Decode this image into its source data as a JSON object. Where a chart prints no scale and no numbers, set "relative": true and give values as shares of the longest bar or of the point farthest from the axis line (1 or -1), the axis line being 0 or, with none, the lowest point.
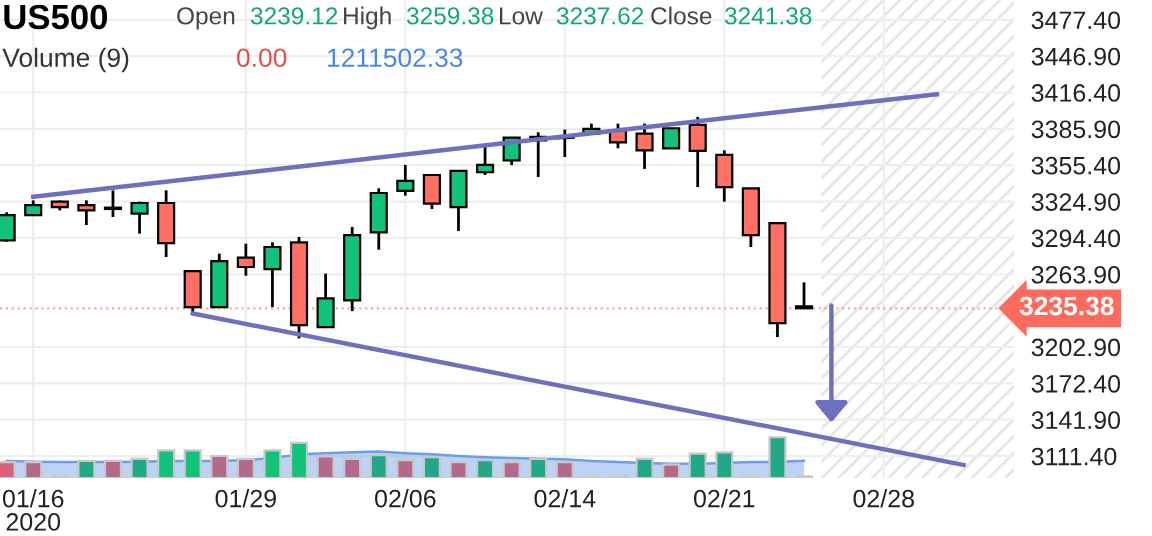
{
  "chart_data": [
    {
      "type": "candlestick",
      "title": "US500",
      "annotations": [
        "Open",
        "3239.12",
        "High",
        "3259.38",
        "Low",
        "3237.62",
        "Close",
        "3241.38"
      ],
      "ref_lines": [
        {
          "axis": "y",
          "value": 3235.38,
          "label": "3235.38",
          "color": "#ff6a5e",
          "line_style": "dotted"
        }
      ],
      "categories": [
        null,
        "01/16\n2020",
        null,
        null,
        null,
        null,
        null,
        null,
        null,
        "01/29",
        null,
        null,
        null,
        null,
        null,
        "02/06",
        null,
        null,
        null,
        null,
        null,
        "02/14",
        null,
        null,
        null,
        null,
        null,
        "02/21",
        null,
        null,
        null,
        null,
        null,
        "02/28",
        null,
        null,
        null,
        null
      ],
      "ohlc": [
        [
          3292.4,
          3315.9,
          3291.2,
          3313.6
        ],
        [
          3313.6,
          3325.9,
          3313.6,
          3322.0
        ],
        [
          3324.8,
          3325.9,
          3317.5,
          3320.3
        ],
        [
          3322.0,
          3325.9,
          3305.2,
          3317.5
        ],
        [
          3319.8,
          3334.3,
          3311.9,
          3318.7
        ],
        [
          3314.7,
          3324.8,
          3298.0,
          3323.7
        ],
        [
          3323.7,
          3334.3,
          3278.4,
          3290.1
        ],
        [
          3266.6,
          3266.6,
          3229.7,
          3236.4
        ],
        [
          3236.4,
          3281.2,
          3236.4,
          3275.0
        ],
        [
          3277.8,
          3289.6,
          3262.7,
          3270.0
        ],
        [
          3268.3,
          3290.7,
          3236.4,
          3286.8
        ],
        [
          3290.7,
          3295.2,
          3210.1,
          3221.3
        ],
        [
          3219.6,
          3264.4,
          3219.6,
          3243.7
        ],
        [
          3242.0,
          3303.6,
          3233.0,
          3296.8
        ],
        [
          3299.1,
          3336.0,
          3284.5,
          3332.1
        ],
        [
          3333.8,
          3355.6,
          3329.9,
          3342.2
        ],
        [
          3347.2,
          3347.2,
          3318.7,
          3323.1
        ],
        [
          3320.3,
          3350.6,
          3300.2,
          3350.6
        ],
        [
          3349.5,
          3370.7,
          3347.2,
          3355.6
        ],
        [
          3359.5,
          3378.6,
          3355.6,
          3378.6
        ],
        [
          3376.3,
          3383.0,
          3345.5,
          3379.1
        ],
        [
          3378.6,
          3385.3,
          3362.3,
          3379.1
        ],
        [
          3381.9,
          3390.3,
          3380.8,
          3385.8
        ],
        [
          3384.7,
          3390.3,
          3369.6,
          3374.6
        ],
        [
          3381.9,
          3390.3,
          3352.3,
          3367.9
        ],
        [
          3369.6,
          3386.4,
          3369.6,
          3386.4
        ],
        [
          3389.2,
          3395.9,
          3337.1,
          3367.4
        ],
        [
          3364.0,
          3367.9,
          3324.8,
          3337.1
        ],
        [
          3336.0,
          3336.0,
          3286.8,
          3296.8
        ],
        [
          3306.9,
          3306.9,
          3211.2,
          3223.0
        ],
        [
          3237.0,
          3257.1,
          3235.4,
          3235.4
        ],
        null,
        null,
        null,
        null,
        null,
        null,
        null
      ],
      "colors": [
        "#13c27a",
        "#13c27a",
        "#ff6f64",
        "#ff6f64",
        "#000000",
        "#13c27a",
        "#ff6f64",
        "#ff6f64",
        "#13c27a",
        "#ff6f64",
        "#13c27a",
        "#ff6f64",
        "#13c27a",
        "#13c27a",
        "#13c27a",
        "#13c27a",
        "#ff6f64",
        "#13c27a",
        "#13c27a",
        "#13c27a",
        "#13c27a",
        "#000000",
        "#13c27a",
        "#ff6f64",
        "#ff6f64",
        "#13c27a",
        "#ff6f64",
        "#ff6f64",
        "#ff6f64",
        "#ff6f64",
        "#ff6f64",
        null,
        null,
        null,
        null,
        null,
        null,
        null
      ],
      "series": [
        {
          "type": "line",
          "color": "#6f6fbf",
          "values": [
            null,
            3329,
            null,
            null,
            null,
            null,
            null,
            null,
            null,
            null,
            null,
            null,
            null,
            null,
            null,
            null,
            null,
            null,
            null,
            null,
            null,
            null,
            null,
            null,
            null,
            null,
            null,
            null,
            null,
            null,
            null,
            null,
            null,
            null,
            null,
            3415,
            null,
            null
          ]
        },
        {
          "type": "line",
          "color": "#6f6fbf",
          "values": [
            null,
            null,
            null,
            null,
            null,
            null,
            null,
            3231,
            null,
            null,
            null,
            null,
            null,
            null,
            null,
            null,
            null,
            null,
            null,
            null,
            null,
            null,
            null,
            null,
            null,
            null,
            null,
            null,
            null,
            null,
            null,
            null,
            null,
            null,
            null,
            null,
            3104,
            null
          ]
        }
      ],
      "ylim": [
        3093,
        3494
      ],
      "yticks": [
        {
          "value": 3111.4,
          "label": "3111.40"
        },
        {
          "value": 3141.9,
          "label": "3141.90"
        },
        {
          "value": 3172.4,
          "label": "3172.40"
        },
        {
          "value": 3202.9,
          "label": "3202.90"
        },
        {
          "value": 3263.9,
          "label": "3263.90"
        },
        {
          "value": 3294.4,
          "label": "3294.40"
        },
        {
          "value": 3324.9,
          "label": "3324.90"
        },
        {
          "value": 3355.4,
          "label": "3355.40"
        },
        {
          "value": 3385.9,
          "label": "3385.90"
        },
        {
          "value": 3416.4,
          "label": "3416.40"
        },
        {
          "value": 3446.9,
          "label": "3446.90"
        },
        {
          "value": 3477.4,
          "label": "3477.40"
        }
      ],
      "grid": true
    },
    {
      "type": "bar",
      "relative": true,
      "title": "Volume (9)",
      "annotations": [
        "0.00",
        "1211502.33"
      ],
      "categories": [
        null,
        null,
        null,
        null,
        null,
        null,
        null,
        null,
        null,
        null,
        null,
        null,
        null,
        null,
        null,
        null,
        null,
        null,
        null,
        null,
        null,
        null,
        null,
        null,
        null,
        null,
        null,
        null,
        null,
        null,
        null,
        null,
        null,
        null,
        null,
        null,
        null,
        null
      ],
      "series": [
        {
          "type": "area",
          "color": "#6d9eeb",
          "values": [
            0.42,
            0.4,
            0.39,
            0.39,
            0.39,
            0.4,
            0.42,
            0.42,
            0.42,
            0.44,
            0.49,
            0.58,
            0.61,
            0.63,
            0.65,
            0.61,
            0.58,
            0.54,
            0.51,
            0.49,
            0.47,
            0.46,
            0.42,
            0.39,
            0.37,
            0.35,
            0.35,
            0.37,
            0.39,
            0.4,
            0.42,
            null,
            null,
            null,
            null,
            null,
            null,
            null
          ]
        },
        {
          "type": "bar",
          "values": [
            0.39,
            0.39,
            0.04,
            0.42,
            0.42,
            0.47,
            0.68,
            0.68,
            0.54,
            0.47,
            0.68,
            0.86,
            0.53,
            0.47,
            0.56,
            0.44,
            0.51,
            0.39,
            0.44,
            0.39,
            0.47,
            0.39,
            0.04,
            0.04,
            0.47,
            0.33,
            0.6,
            0.63,
            0.04,
            1,
            0.04,
            null,
            null,
            null,
            null,
            null,
            null,
            null
          ],
          "colors": [
            "#d8607a",
            "#b5698a",
            "#9aa4b8",
            "#22a887",
            "#b5698a",
            "#22a887",
            "#13c27a",
            "#13c27a",
            "#b5698a",
            "#b5698a",
            "#13c27a",
            "#13c27a",
            "#b5698a",
            "#b5698a",
            "#22a887",
            "#b5698a",
            "#22a887",
            "#b5698a",
            "#22a887",
            "#b5698a",
            "#22a887",
            "#b5698a",
            "#9aa4b8",
            "#9aa4b8",
            "#22a887",
            "#b5698a",
            "#22a887",
            "#22a887",
            "#9aa4b8",
            "#22a887",
            "#9aa4b8",
            null,
            null,
            null,
            null,
            null,
            null,
            null
          ]
        }
      ]
    }
  ]
}
